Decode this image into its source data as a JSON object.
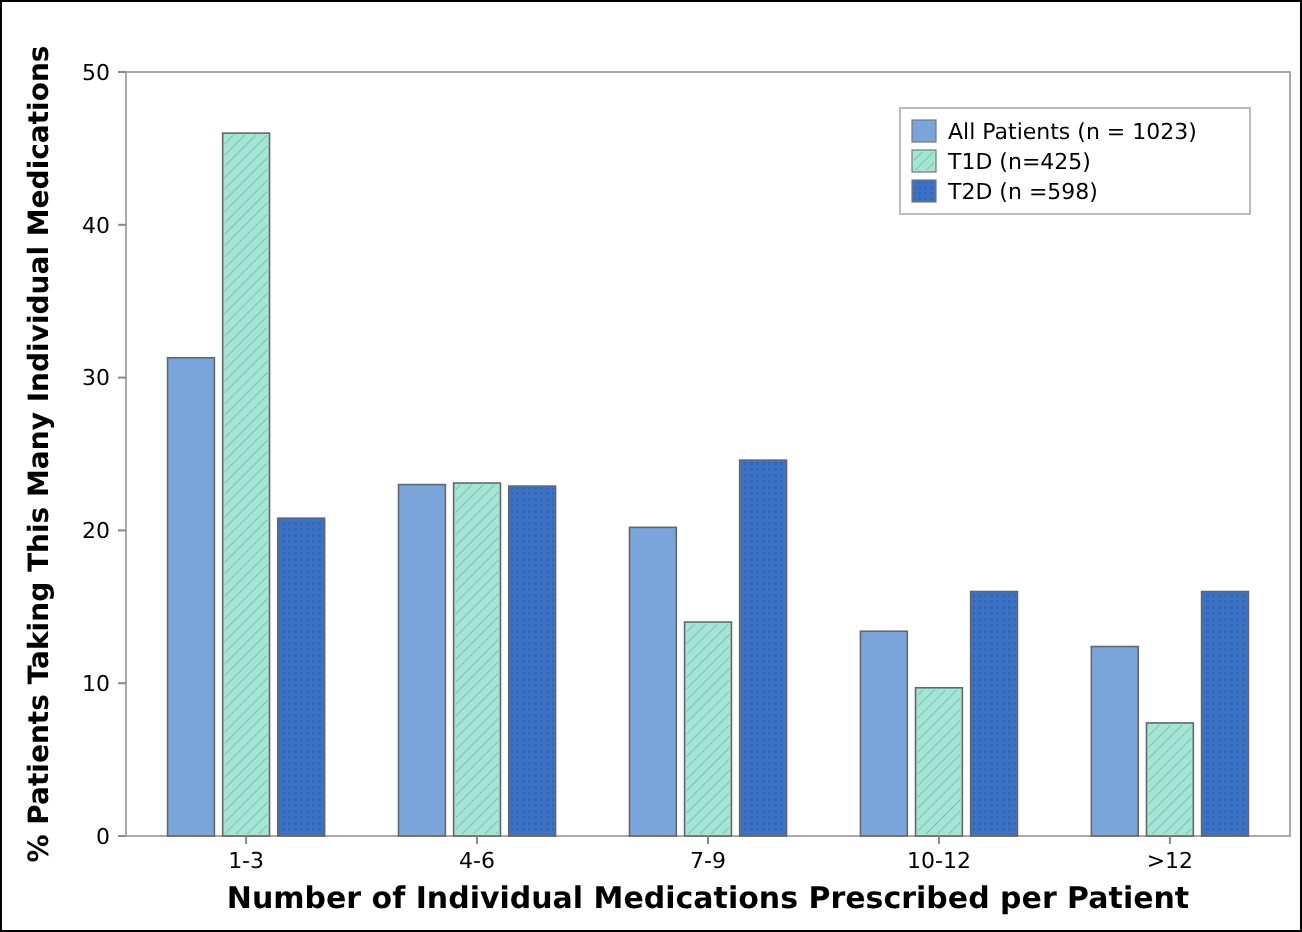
{
  "chart_data": {
    "type": "bar",
    "xlabel": "Number of Individual Medications Prescribed per Patient",
    "ylabel": "% Patients Taking This Many Individual Medications",
    "categories": [
      "1-3",
      "4-6",
      "7-9",
      "10-12",
      ">12"
    ],
    "series": [
      {
        "name": "All Patients (n = 1023)",
        "color": "#7aa5db",
        "values": [
          31.3,
          23,
          20.2,
          13.4,
          12.4
        ]
      },
      {
        "name": "T1D (n=425)",
        "color": "#a3e6d6",
        "values": [
          46,
          23.1,
          14,
          9.7,
          7.4
        ]
      },
      {
        "name": "T2D (n =598)",
        "color": "#3b72c6",
        "values": [
          20.8,
          22.9,
          24.6,
          16,
          16
        ]
      }
    ],
    "ylim": [
      0,
      50
    ],
    "yticks": [
      0,
      10,
      20,
      30,
      40,
      50
    ],
    "grid": false,
    "legend": "top right"
  }
}
